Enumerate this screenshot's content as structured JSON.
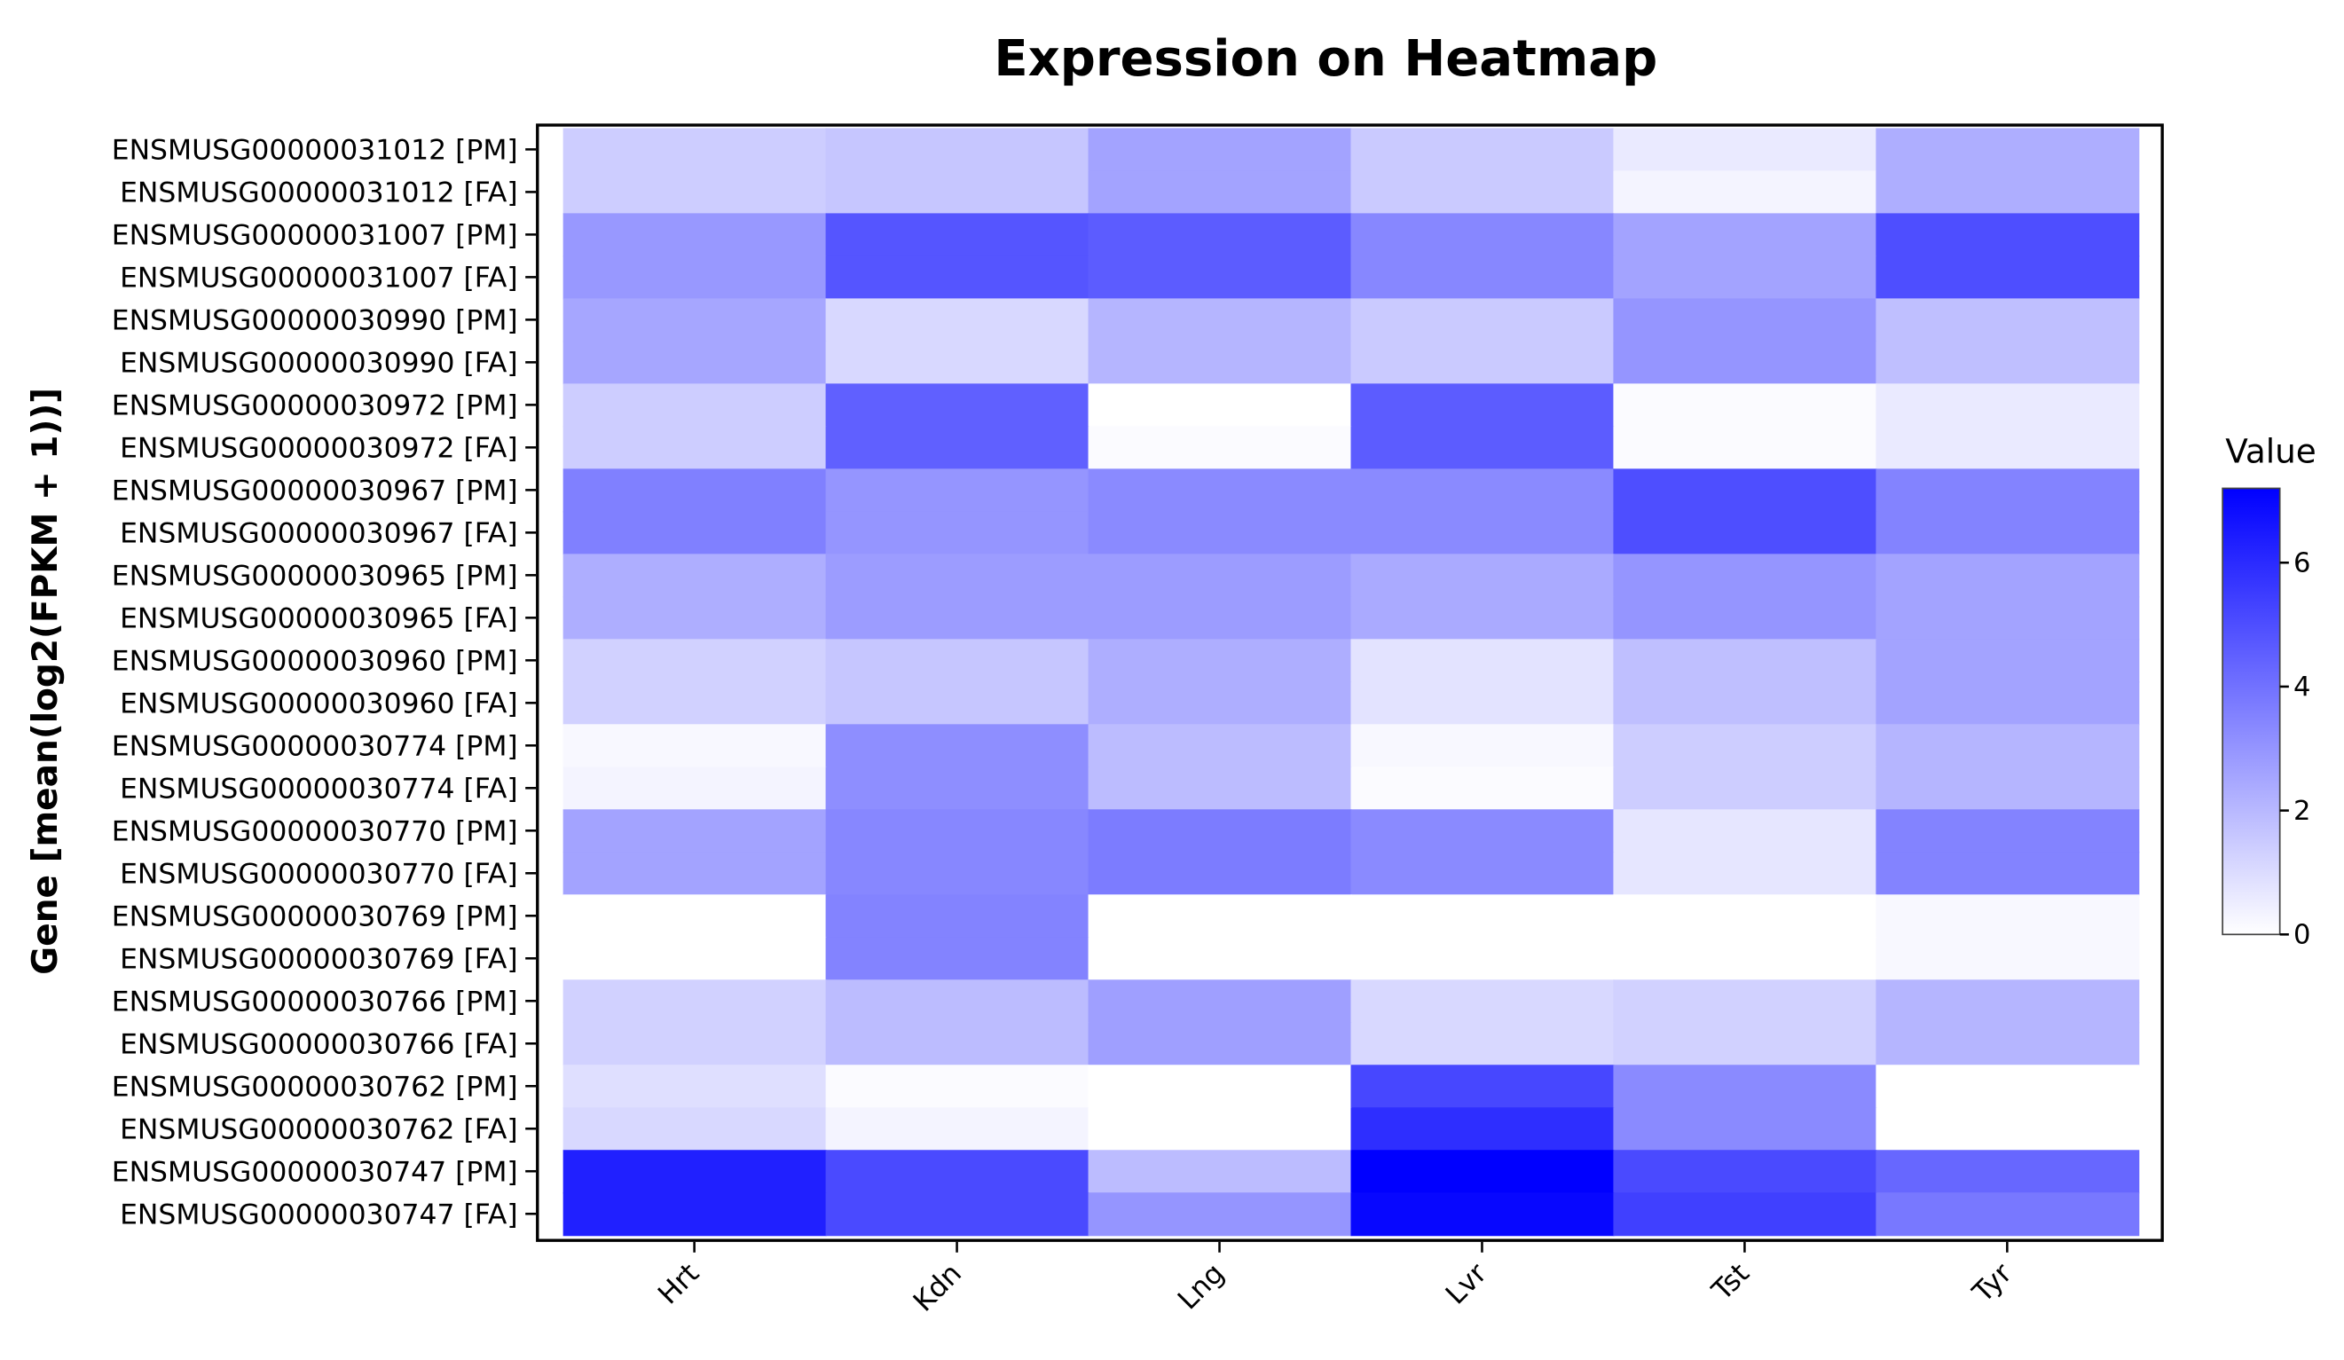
{
  "chart_data": {
    "type": "heatmap",
    "title": "Expression on Heatmap",
    "ylabel": "Gene [mean(log2(FPKM + 1))]",
    "xlabel": "",
    "x_categories": [
      "Hrt",
      "Kdn",
      "Lng",
      "Lvr",
      "Tst",
      "Tyr"
    ],
    "y_categories": [
      "ENSMUSG00000031012 [PM]",
      "ENSMUSG00000031012 [FA]",
      "ENSMUSG00000031007 [PM]",
      "ENSMUSG00000031007 [FA]",
      "ENSMUSG00000030990 [PM]",
      "ENSMUSG00000030990 [FA]",
      "ENSMUSG00000030972 [PM]",
      "ENSMUSG00000030972 [FA]",
      "ENSMUSG00000030967 [PM]",
      "ENSMUSG00000030967 [FA]",
      "ENSMUSG00000030965 [PM]",
      "ENSMUSG00000030965 [FA]",
      "ENSMUSG00000030960 [PM]",
      "ENSMUSG00000030960 [FA]",
      "ENSMUSG00000030774 [PM]",
      "ENSMUSG00000030774 [FA]",
      "ENSMUSG00000030770 [PM]",
      "ENSMUSG00000030770 [FA]",
      "ENSMUSG00000030769 [PM]",
      "ENSMUSG00000030769 [FA]",
      "ENSMUSG00000030766 [PM]",
      "ENSMUSG00000030766 [FA]",
      "ENSMUSG00000030762 [PM]",
      "ENSMUSG00000030762 [FA]",
      "ENSMUSG00000030747 [PM]",
      "ENSMUSG00000030747 [FA]"
    ],
    "values": [
      [
        1.4,
        1.6,
        2.6,
        1.5,
        0.6,
        2.3
      ],
      [
        1.4,
        1.6,
        2.6,
        1.5,
        0.3,
        2.3
      ],
      [
        2.9,
        4.8,
        4.6,
        3.4,
        2.6,
        5.0
      ],
      [
        2.9,
        4.8,
        4.6,
        3.4,
        2.6,
        5.0
      ],
      [
        2.5,
        1.1,
        2.1,
        1.5,
        3.0,
        1.8
      ],
      [
        2.5,
        1.1,
        2.1,
        1.5,
        3.0,
        1.8
      ],
      [
        1.4,
        4.5,
        0.0,
        4.6,
        0.1,
        0.6
      ],
      [
        1.4,
        4.5,
        0.1,
        4.6,
        0.1,
        0.6
      ],
      [
        3.6,
        3.0,
        3.3,
        3.3,
        5.0,
        3.5
      ],
      [
        3.6,
        3.0,
        3.3,
        3.3,
        5.0,
        3.5
      ],
      [
        2.3,
        2.8,
        2.8,
        2.4,
        3.0,
        2.6
      ],
      [
        2.3,
        2.8,
        2.8,
        2.4,
        3.0,
        2.6
      ],
      [
        1.3,
        1.6,
        2.3,
        0.8,
        1.8,
        2.6
      ],
      [
        1.3,
        1.6,
        2.3,
        0.8,
        1.8,
        2.6
      ],
      [
        0.2,
        3.2,
        1.9,
        0.2,
        1.4,
        2.1
      ],
      [
        0.3,
        3.2,
        1.9,
        0.1,
        1.4,
        2.1
      ],
      [
        2.6,
        3.4,
        3.7,
        3.3,
        0.7,
        3.5
      ],
      [
        2.6,
        3.4,
        3.7,
        3.3,
        0.7,
        3.5
      ],
      [
        0.0,
        3.5,
        0.0,
        0.0,
        0.0,
        0.2
      ],
      [
        0.0,
        3.5,
        0.0,
        0.0,
        0.0,
        0.2
      ],
      [
        1.3,
        1.9,
        2.7,
        1.1,
        1.3,
        2.1
      ],
      [
        1.3,
        1.9,
        2.7,
        1.1,
        1.3,
        2.1
      ],
      [
        0.9,
        0.1,
        0.0,
        5.2,
        3.3,
        0.0
      ],
      [
        1.1,
        0.3,
        0.0,
        5.9,
        3.3,
        0.0
      ],
      [
        6.3,
        5.1,
        1.9,
        7.2,
        5.1,
        4.3
      ],
      [
        6.3,
        5.1,
        3.0,
        7.0,
        5.4,
        3.8
      ]
    ],
    "colorscale": {
      "title": "Value",
      "min": 0,
      "max": 7.2,
      "ticks": [
        "0",
        "2",
        "4",
        "6"
      ],
      "low_color": "#ffffff",
      "high_color": "#0000ff"
    }
  }
}
